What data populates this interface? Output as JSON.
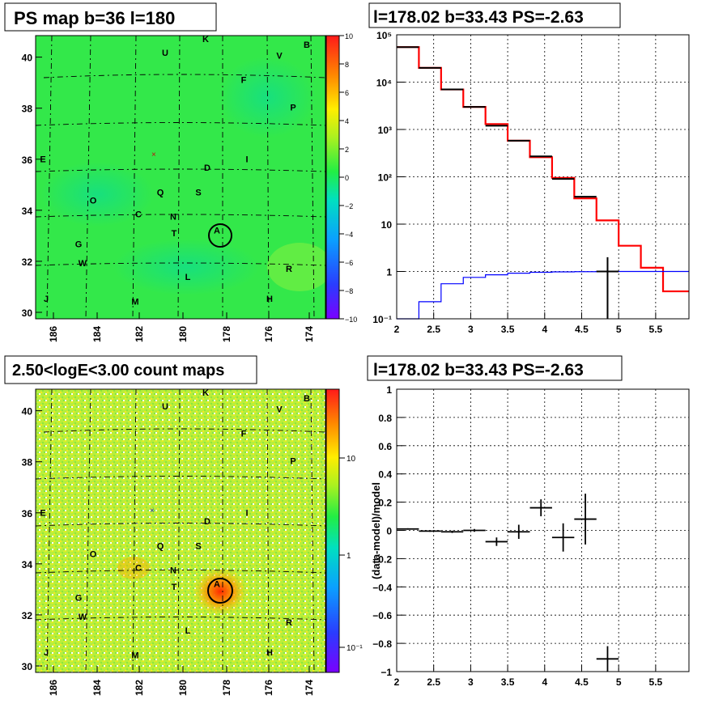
{
  "colors": {
    "red_model": "#ff0000",
    "blue_model": "#0000ff",
    "data": "#000000",
    "map_bg_top": "#33e84a",
    "map_bg_bottom": "#b8f040"
  },
  "panels": [
    {
      "id": "ps_map",
      "title": "PS map b=36 l=180",
      "x_ticks": [
        "186",
        "184",
        "182",
        "180",
        "178",
        "176",
        "174"
      ],
      "y_ticks": [
        "30",
        "32",
        "34",
        "36",
        "38",
        "40"
      ],
      "colorbar_ticks": [
        "10",
        "8",
        "6",
        "4",
        "2",
        "0",
        "−2",
        "−4",
        "−6",
        "−8",
        "−10"
      ],
      "source_labels": [
        "U",
        "K",
        "B",
        "V",
        "F",
        "P",
        "E",
        "D",
        "I",
        "Q",
        "S",
        "O",
        "C",
        "N",
        "A",
        "T",
        "G",
        "W",
        "R",
        "L",
        "J",
        "M",
        "H"
      ]
    },
    {
      "id": "count_map",
      "title": "2.50<logE<3.00 count maps",
      "x_ticks": [
        "186",
        "184",
        "182",
        "180",
        "178",
        "176",
        "174"
      ],
      "y_ticks": [
        "30",
        "32",
        "34",
        "36",
        "38",
        "40"
      ],
      "colorbar_ticks": [
        "10",
        "1",
        "10⁻¹"
      ],
      "source_labels": [
        "U",
        "K",
        "B",
        "V",
        "F",
        "P",
        "E",
        "D",
        "I",
        "Q",
        "S",
        "O",
        "C",
        "N",
        "A",
        "T",
        "G",
        "W",
        "R",
        "L",
        "J",
        "M",
        "H"
      ]
    }
  ],
  "chart_data": [
    {
      "type": "line",
      "title": "l=178.02 b=33.43 PS=-2.63",
      "xlim": [
        2,
        5.95
      ],
      "ylim": [
        0.1,
        100000
      ],
      "yscale": "log",
      "x_ticks": [
        "2",
        "2.5",
        "3",
        "3.5",
        "4",
        "4.5",
        "5",
        "5.5"
      ],
      "y_ticks": [
        "10⁻¹",
        "1",
        "10",
        "10²",
        "10³",
        "10⁴",
        "10⁵"
      ],
      "bin_edges": [
        2,
        2.3,
        2.6,
        2.9,
        3.2,
        3.5,
        3.8,
        4.1,
        4.4,
        4.7,
        5.0,
        5.3,
        5.6,
        5.95
      ],
      "series": [
        {
          "values": [
            55000,
            20000,
            7000,
            3000,
            1300,
            580,
            260,
            95,
            35,
            12,
            3.5,
            1.2,
            0.38
          ]
        },
        {
          "values": [
            0.1,
            0.23,
            0.55,
            0.75,
            0.85,
            0.92,
            0.96,
            0.98,
            0.99,
            1.0,
            1.0,
            1.0,
            1.0
          ]
        },
        {
          "values": [
            55000,
            20000,
            7000,
            3000,
            1200,
            580,
            270,
            90,
            38,
            1.0,
            null,
            null,
            null
          ]
        }
      ],
      "grid": true
    },
    {
      "type": "scatter",
      "title": "l=178.02 b=33.43 PS=-2.63",
      "ylabel": "(data-model)/model",
      "xlim": [
        2,
        5.95
      ],
      "ylim": [
        -1,
        1
      ],
      "x_ticks": [
        "2",
        "2.5",
        "3",
        "3.5",
        "4",
        "4.5",
        "5",
        "5.5"
      ],
      "y_ticks": [
        "−1",
        "−0.8",
        "−0.6",
        "−0.4",
        "−0.2",
        "0",
        "0.2",
        "0.4",
        "0.6",
        "0.8",
        "1"
      ],
      "points": [
        {
          "x": 2.15,
          "y": 0.01,
          "xerr": 0.15,
          "yerr": 0.005
        },
        {
          "x": 2.45,
          "y": -0.005,
          "xerr": 0.15,
          "yerr": 0.005
        },
        {
          "x": 2.75,
          "y": -0.01,
          "xerr": 0.15,
          "yerr": 0.008
        },
        {
          "x": 3.05,
          "y": 0.0,
          "xerr": 0.15,
          "yerr": 0.01
        },
        {
          "x": 3.35,
          "y": -0.08,
          "xerr": 0.15,
          "yerr": 0.03
        },
        {
          "x": 3.65,
          "y": -0.01,
          "xerr": 0.15,
          "yerr": 0.05
        },
        {
          "x": 3.95,
          "y": 0.16,
          "xerr": 0.15,
          "yerr": 0.06
        },
        {
          "x": 4.25,
          "y": -0.05,
          "xerr": 0.15,
          "yerr": 0.1
        },
        {
          "x": 4.55,
          "y": 0.08,
          "xerr": 0.15,
          "yerr": 0.18
        },
        {
          "x": 4.85,
          "y": -0.91,
          "xerr": 0.15,
          "yerr": 0.09
        }
      ],
      "grid": true
    }
  ]
}
